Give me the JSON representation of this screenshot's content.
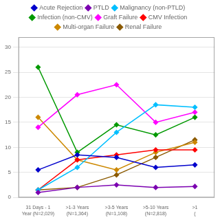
{
  "chart_data": {
    "type": "line",
    "categories": [
      "31 Days - 1\nYear (N=2,029)",
      ">1-3 Years\n(N=1,364)",
      ">3-5 Years\n(N=1,108)",
      ">5-10 Years\n(N=2,818)",
      ">1\n("
    ],
    "series": [
      {
        "name": "Acute Rejection",
        "color": "#0000CC",
        "values": [
          5.5,
          8.5,
          8.0,
          6.0,
          6.5
        ]
      },
      {
        "name": "PTLD",
        "color": "#7B00B0",
        "values": [
          1.0,
          2.0,
          2.5,
          2.0,
          2.2
        ]
      },
      {
        "name": "Malignancy (non-PTLD)",
        "color": "#00BFFF",
        "values": [
          1.5,
          6.0,
          13.0,
          18.5,
          18.0
        ]
      },
      {
        "name": "Infection (non-CMV)",
        "color": "#009900",
        "values": [
          26.0,
          9.0,
          14.5,
          12.5,
          16.0
        ]
      },
      {
        "name": "Graft Failure",
        "color": "#FF00FF",
        "values": [
          14.0,
          20.5,
          22.5,
          15.0,
          17.0
        ]
      },
      {
        "name": "CMV Infection",
        "color": "#FF0000",
        "values": [
          1.5,
          7.5,
          8.5,
          9.5,
          9.5
        ]
      },
      {
        "name": "Multi-organ Failure",
        "color": "#CC8800",
        "values": [
          16.0,
          7.5,
          5.5,
          9.0,
          11.0
        ]
      },
      {
        "name": "Renal Failure",
        "color": "#8B5A00",
        "values": [
          1.5,
          2.0,
          4.5,
          8.0,
          11.5
        ]
      }
    ],
    "ylim": [
      0,
      32
    ],
    "yticks": [
      0,
      5,
      10,
      15,
      20,
      25,
      30
    ],
    "grid": "y",
    "legend": "top",
    "marker": "diamond"
  }
}
